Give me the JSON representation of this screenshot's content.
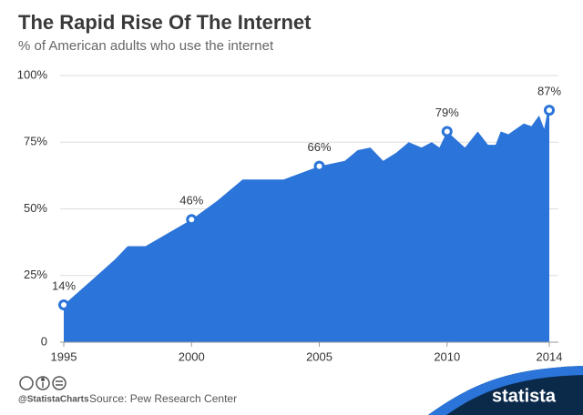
{
  "chart_data": {
    "type": "area",
    "title": "The Rapid Rise Of The Internet",
    "subtitle": "% of American adults who use the internet",
    "color": "#2b74d9",
    "x": [
      1995,
      1996.3,
      1997,
      1997.5,
      1998.2,
      2000,
      2001,
      2002,
      2003.6,
      2005,
      2006,
      2006.5,
      2007,
      2007.5,
      2008,
      2008.5,
      2009,
      2009.4,
      2009.7,
      2010,
      2010.7,
      2011.2,
      2011.6,
      2011.9,
      2012.1,
      2012.4,
      2013,
      2013.3,
      2013.6,
      2013.8,
      2013.9,
      2014
    ],
    "values": [
      14,
      25,
      31,
      36,
      36,
      46,
      53,
      61,
      61,
      66,
      68,
      72,
      73,
      68,
      71,
      75,
      73,
      75,
      73,
      79,
      73,
      79,
      74,
      74,
      79,
      78,
      82,
      81,
      85,
      80,
      85,
      87
    ],
    "labeled_points": {
      "x": [
        1995,
        2000,
        2005,
        2010,
        2014
      ],
      "values": [
        14,
        46,
        66,
        79,
        87
      ],
      "value_labels": [
        "14%",
        "46%",
        "66%",
        "79%",
        "87%"
      ]
    },
    "xlim": [
      1995,
      2014
    ],
    "xticks": [
      1995,
      2000,
      2005,
      2010,
      2014
    ],
    "ylim": [
      0,
      100
    ],
    "yticks": [
      0,
      {
        "value": 25,
        "label": "25%"
      },
      {
        "value": 50,
        "label": "50%"
      },
      {
        "value": 75,
        "label": "75%"
      },
      {
        "value": 100,
        "label": "100%"
      }
    ],
    "grid": true,
    "credit": "@StatistaCharts",
    "source": "Source: Pew Research Center",
    "brand": "statista"
  }
}
